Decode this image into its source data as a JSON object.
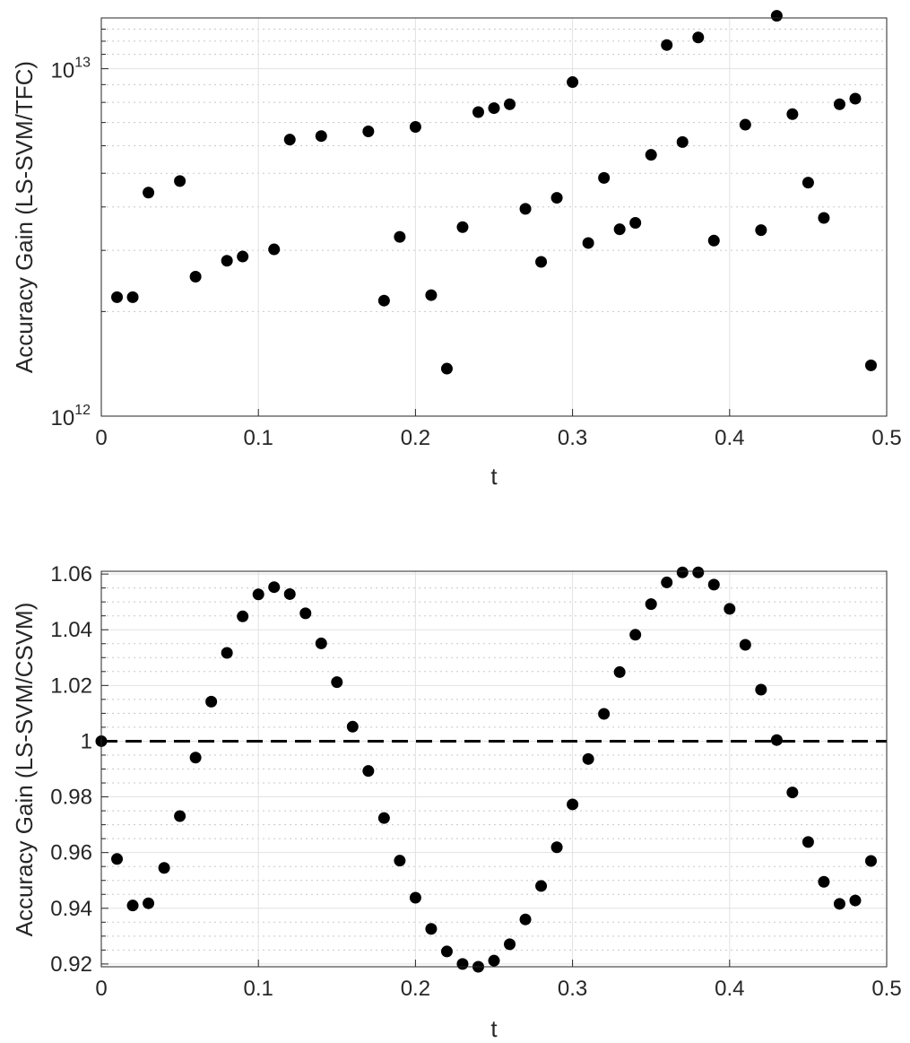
{
  "chart_data": [
    {
      "type": "scatter",
      "yscale": "log",
      "xlabel": "t",
      "ylabel": "Accuracy Gain (LS-SVM/TFC)",
      "xlim": [
        0,
        0.5
      ],
      "ylim": [
        1000000000000.0,
        14000000000000.0
      ],
      "xticks": [
        0,
        0.1,
        0.2,
        0.3,
        0.4,
        0.5
      ],
      "xtick_labels": [
        "0",
        "0.1",
        "0.2",
        "0.3",
        "0.4",
        "0.5"
      ],
      "yticks": [
        {
          "value": 1000000000000.0,
          "base": "10",
          "exp": "12"
        },
        {
          "value": 10000000000000.0,
          "base": "10",
          "exp": "13"
        }
      ],
      "grid": true,
      "minor_grid": true,
      "series": [
        {
          "name": "LS-SVM/TFC",
          "x": [
            0.01,
            0.02,
            0.03,
            0.05,
            0.06,
            0.08,
            0.09,
            0.11,
            0.12,
            0.14,
            0.17,
            0.18,
            0.19,
            0.2,
            0.21,
            0.22,
            0.23,
            0.24,
            0.25,
            0.26,
            0.27,
            0.28,
            0.29,
            0.3,
            0.31,
            0.32,
            0.33,
            0.34,
            0.35,
            0.36,
            0.37,
            0.38,
            0.39,
            0.41,
            0.42,
            0.43,
            0.44,
            0.45,
            0.46,
            0.47,
            0.48,
            0.49
          ],
          "y": [
            2200000000000.0,
            2200000000000.0,
            4400000000000.0,
            4750000000000.0,
            2520000000000.0,
            2800000000000.0,
            2880000000000.0,
            3020000000000.0,
            6250000000000.0,
            6400000000000.0,
            6600000000000.0,
            2150000000000.0,
            3280000000000.0,
            6800000000000.0,
            2230000000000.0,
            1370000000000.0,
            3500000000000.0,
            7500000000000.0,
            7700000000000.0,
            7900000000000.0,
            3950000000000.0,
            2780000000000.0,
            4250000000000.0,
            9150000000000.0,
            3150000000000.0,
            4850000000000.0,
            3450000000000.0,
            3600000000000.0,
            5650000000000.0,
            11700000000000.0,
            6150000000000.0,
            12300000000000.0,
            3200000000000.0,
            6900000000000.0,
            3430000000000.0,
            14200000000000.0,
            7400000000000.0,
            4700000000000.0,
            3720000000000.0,
            7900000000000.0,
            8200000000000.0,
            1400000000000.0
          ]
        }
      ]
    },
    {
      "type": "scatter",
      "yscale": "linear",
      "xlabel": "t",
      "ylabel": "Accuracy Gain (LS-SVM/CSVM)",
      "xlim": [
        0,
        0.5
      ],
      "ylim": [
        0.919,
        1.061
      ],
      "xticks": [
        0,
        0.1,
        0.2,
        0.3,
        0.4,
        0.5
      ],
      "xtick_labels": [
        "0",
        "0.1",
        "0.2",
        "0.3",
        "0.4",
        "0.5"
      ],
      "yticks": [
        0.92,
        0.94,
        0.96,
        0.98,
        1,
        1.02,
        1.04,
        1.06
      ],
      "ytick_labels": [
        "0.92",
        "0.94",
        "0.96",
        "0.98",
        "1",
        "1.02",
        "1.04",
        "1.06"
      ],
      "grid": true,
      "minor_grid": true,
      "reference_line": {
        "y": 1,
        "style": "dashed"
      },
      "series": [
        {
          "name": "LS-SVM/CSVM",
          "x": [
            0.0,
            0.01,
            0.02,
            0.03,
            0.04,
            0.05,
            0.06,
            0.07,
            0.08,
            0.09,
            0.1,
            0.11,
            0.12,
            0.13,
            0.14,
            0.15,
            0.16,
            0.17,
            0.18,
            0.19,
            0.2,
            0.21,
            0.22,
            0.23,
            0.24,
            0.25,
            0.26,
            0.27,
            0.28,
            0.29,
            0.3,
            0.31,
            0.32,
            0.33,
            0.34,
            0.35,
            0.36,
            0.37,
            0.38,
            0.39,
            0.4,
            0.41,
            0.42,
            0.43,
            0.44,
            0.45,
            0.46,
            0.47,
            0.48,
            0.49
          ],
          "y": [
            1.0,
            0.9577,
            0.941,
            0.9418,
            0.9545,
            0.9731,
            0.9941,
            1.0142,
            1.0317,
            1.0448,
            1.0527,
            1.0553,
            1.0528,
            1.0459,
            1.0351,
            1.0212,
            1.0052,
            0.9893,
            0.9724,
            0.9571,
            0.9438,
            0.9326,
            0.9245,
            0.92,
            0.919,
            0.9212,
            0.9271,
            0.936,
            0.948,
            0.9619,
            0.9773,
            0.9936,
            1.0098,
            1.0248,
            1.0382,
            1.0492,
            1.057,
            1.0606,
            1.0606,
            1.0562,
            1.0475,
            1.0346,
            1.0185,
            1.0004,
            0.9816,
            0.9638,
            0.9495,
            0.9416,
            0.9428,
            0.957
          ]
        }
      ]
    }
  ]
}
